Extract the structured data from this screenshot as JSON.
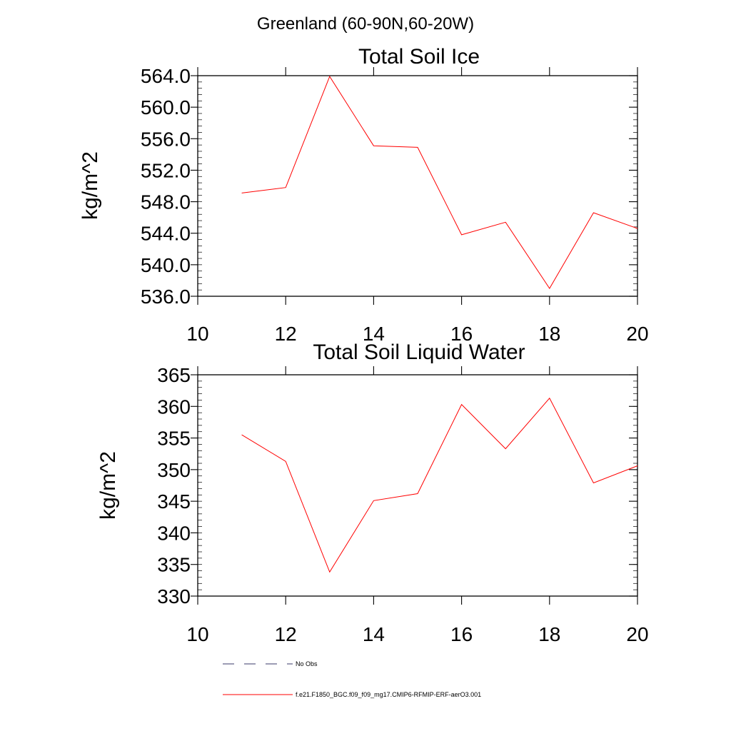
{
  "suptitle": "Greenland (60-90N,60-20W)",
  "colors": {
    "series": "#ff0000",
    "obs": "#3a3a6a",
    "axis": "#000000"
  },
  "chart_data": [
    {
      "type": "line",
      "title": "Total Soil Ice",
      "ylabel": "kg/m^2",
      "xlim": [
        10,
        20
      ],
      "ylim": [
        536,
        564
      ],
      "xticks": [
        10,
        12,
        14,
        16,
        18,
        20
      ],
      "xtick_labels": [
        "10",
        "12",
        "14",
        "16",
        "18",
        "20"
      ],
      "yticks": [
        536,
        540,
        544,
        548,
        552,
        556,
        560,
        564
      ],
      "ytick_labels": [
        "536.0",
        "540.0",
        "544.0",
        "548.0",
        "552.0",
        "556.0",
        "560.0",
        "564.0"
      ],
      "series": [
        {
          "name": "f.e21.F1850_BGC.f09_f09_mg17.CMIP6-RFMIP-ERF-aerO3.001",
          "x": [
            11,
            12,
            13,
            14,
            15,
            16,
            17,
            18,
            19,
            20
          ],
          "y": [
            549.1,
            549.8,
            563.9,
            555.1,
            554.9,
            543.8,
            545.4,
            537.0,
            546.6,
            544.6
          ]
        }
      ]
    },
    {
      "type": "line",
      "title": "Total Soil Liquid Water",
      "ylabel": "kg/m^2",
      "xlim": [
        10,
        20
      ],
      "ylim": [
        330,
        365
      ],
      "xticks": [
        10,
        12,
        14,
        16,
        18,
        20
      ],
      "xtick_labels": [
        "10",
        "12",
        "14",
        "16",
        "18",
        "20"
      ],
      "yticks": [
        330,
        335,
        340,
        345,
        350,
        355,
        360,
        365
      ],
      "ytick_labels": [
        "330",
        "335",
        "340",
        "345",
        "350",
        "355",
        "360",
        "365"
      ],
      "series": [
        {
          "name": "f.e21.F1850_BGC.f09_f09_mg17.CMIP6-RFMIP-ERF-aerO3.001",
          "x": [
            11,
            12,
            13,
            14,
            15,
            16,
            17,
            18,
            19,
            20
          ],
          "y": [
            355.5,
            351.3,
            333.8,
            345.1,
            346.2,
            360.3,
            353.3,
            361.3,
            347.9,
            350.6
          ]
        }
      ]
    }
  ],
  "legend": {
    "placement": "bottom-left",
    "items": [
      {
        "label": "No Obs",
        "style": "dashed"
      },
      {
        "label": "f.e21.F1850_BGC.f09_f09_mg17.CMIP6-RFMIP-ERF-aerO3.001",
        "style": "solid"
      }
    ]
  }
}
